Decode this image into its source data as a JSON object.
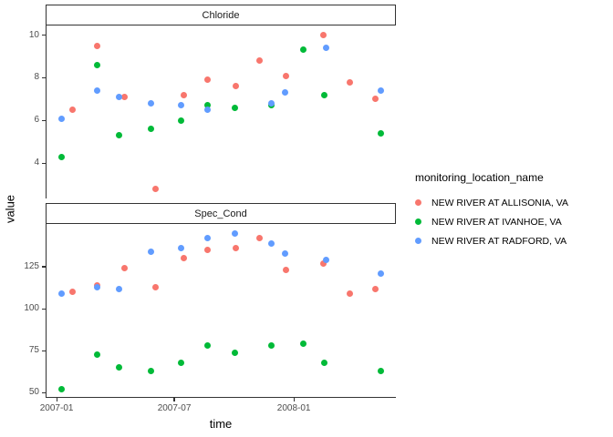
{
  "figure": {
    "y_axis_title": "value",
    "x_axis_title": "time"
  },
  "legend": {
    "title": "monitoring_location_name",
    "items": [
      {
        "label": "NEW RIVER AT ALLISONIA, VA",
        "color": "#F8766D"
      },
      {
        "label": "NEW RIVER AT IVANHOE, VA",
        "color": "#00BA38"
      },
      {
        "label": "NEW RIVER AT RADFORD, VA",
        "color": "#619CFF"
      }
    ]
  },
  "chart_data": [
    {
      "type": "scatter",
      "facet_label": "Chloride",
      "xlabel": "time",
      "ylabel": "value",
      "grid": false,
      "legend_position": "right",
      "xlim": [
        "2006-12-15",
        "2008-06-06"
      ],
      "ylim": [
        2.35,
        10.45
      ],
      "y_ticks": [
        4,
        6,
        8,
        10
      ],
      "x_ticks": [
        {
          "label": "2007-01",
          "date": "2007-01-01"
        },
        {
          "label": "2007-07",
          "date": "2007-07-01"
        },
        {
          "label": "2008-01",
          "date": "2008-01-01"
        }
      ],
      "series": [
        {
          "name": "NEW RIVER AT ALLISONIA, VA",
          "color": "#F8766D",
          "points": [
            [
              "2007-01-25",
              6.5
            ],
            [
              "2007-03-05",
              9.5
            ],
            [
              "2007-04-16",
              7.1
            ],
            [
              "2007-06-02",
              2.8
            ],
            [
              "2007-07-15",
              7.2
            ],
            [
              "2007-08-21",
              7.9
            ],
            [
              "2007-10-03",
              7.6
            ],
            [
              "2007-11-09",
              8.8
            ],
            [
              "2007-12-20",
              8.1
            ],
            [
              "2008-02-15",
              10.0
            ],
            [
              "2008-03-27",
              7.8
            ],
            [
              "2008-05-05",
              7.0
            ]
          ]
        },
        {
          "name": "NEW RIVER AT IVANHOE, VA",
          "color": "#00BA38",
          "points": [
            [
              "2007-01-09",
              4.3
            ],
            [
              "2007-03-05",
              8.6
            ],
            [
              "2007-04-07",
              5.3
            ],
            [
              "2007-05-26",
              5.6
            ],
            [
              "2007-07-11",
              6.0
            ],
            [
              "2007-08-21",
              6.7
            ],
            [
              "2007-10-02",
              6.6
            ],
            [
              "2007-11-27",
              6.7
            ],
            [
              "2008-01-16",
              9.3
            ],
            [
              "2008-02-17",
              7.2
            ],
            [
              "2008-05-14",
              5.4
            ]
          ]
        },
        {
          "name": "NEW RIVER AT RADFORD, VA",
          "color": "#619CFF",
          "points": [
            [
              "2007-01-08",
              6.1
            ],
            [
              "2007-03-05",
              7.4
            ],
            [
              "2007-04-07",
              7.1
            ],
            [
              "2007-05-26",
              6.8
            ],
            [
              "2007-07-11",
              6.7
            ],
            [
              "2007-08-21",
              6.5
            ],
            [
              "2007-11-27",
              6.8
            ],
            [
              "2007-12-19",
              7.3
            ],
            [
              "2008-02-20",
              9.4
            ],
            [
              "2008-05-14",
              7.4
            ]
          ]
        }
      ]
    },
    {
      "type": "scatter",
      "facet_label": "Spec_Cond",
      "xlabel": "time",
      "ylabel": "value",
      "grid": false,
      "legend_position": "right",
      "xlim": [
        "2006-12-15",
        "2008-06-06"
      ],
      "ylim": [
        47,
        150.5
      ],
      "y_ticks": [
        50,
        75,
        100,
        125
      ],
      "x_ticks": [
        {
          "label": "2007-01",
          "date": "2007-01-01"
        },
        {
          "label": "2007-07",
          "date": "2007-07-01"
        },
        {
          "label": "2008-01",
          "date": "2008-01-01"
        }
      ],
      "series": [
        {
          "name": "NEW RIVER AT ALLISONIA, VA",
          "color": "#F8766D",
          "points": [
            [
              "2007-01-25",
              110
            ],
            [
              "2007-03-05",
              114
            ],
            [
              "2007-04-16",
              124
            ],
            [
              "2007-06-02",
              113
            ],
            [
              "2007-07-15",
              130
            ],
            [
              "2007-08-21",
              135
            ],
            [
              "2007-10-03",
              136
            ],
            [
              "2007-11-09",
              142
            ],
            [
              "2007-12-20",
              123
            ],
            [
              "2008-02-15",
              127
            ],
            [
              "2008-03-27",
              109
            ],
            [
              "2008-05-05",
              112
            ]
          ]
        },
        {
          "name": "NEW RIVER AT IVANHOE, VA",
          "color": "#00BA38",
          "points": [
            [
              "2007-01-09",
              52
            ],
            [
              "2007-03-05",
              73
            ],
            [
              "2007-04-07",
              65
            ],
            [
              "2007-05-26",
              63
            ],
            [
              "2007-07-11",
              68
            ],
            [
              "2007-08-21",
              78
            ],
            [
              "2007-10-02",
              74
            ],
            [
              "2007-11-27",
              78
            ],
            [
              "2008-01-16",
              79
            ],
            [
              "2008-02-17",
              68
            ],
            [
              "2008-05-14",
              63
            ]
          ]
        },
        {
          "name": "NEW RIVER AT RADFORD, VA",
          "color": "#619CFF",
          "points": [
            [
              "2007-01-08",
              109
            ],
            [
              "2007-03-05",
              113
            ],
            [
              "2007-04-07",
              112
            ],
            [
              "2007-05-26",
              134
            ],
            [
              "2007-07-11",
              136
            ],
            [
              "2007-08-21",
              142
            ],
            [
              "2007-10-02",
              145
            ],
            [
              "2007-11-27",
              139
            ],
            [
              "2007-12-19",
              133
            ],
            [
              "2008-02-20",
              129
            ],
            [
              "2008-05-14",
              121
            ]
          ]
        }
      ]
    }
  ]
}
